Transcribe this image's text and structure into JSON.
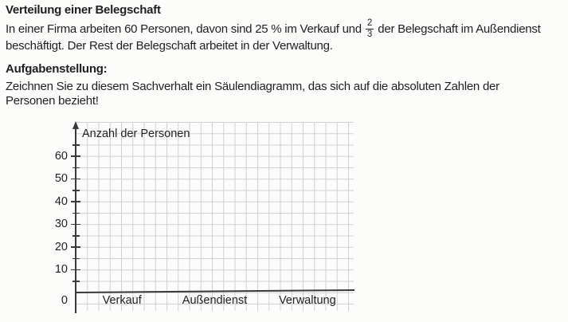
{
  "document": {
    "title": "Verteilung einer Belegschaft",
    "intro": {
      "before_fraction": "In einer Firma arbeiten 60 Personen, davon sind 25 % im Verkauf und",
      "fraction_numerator": "2",
      "fraction_denominator": "3",
      "after_fraction": "der Belegschaft im Außendienst",
      "line2": "beschäftigt. Der Rest der Belegschaft arbeitet in der Verwaltung."
    },
    "task": {
      "heading": "Aufgabenstellung:",
      "line1": "Zeichnen Sie zu diesem Sachverhalt ein Säulendiagramm, das sich auf die absoluten Zahlen der",
      "line2": "Personen bezieht!"
    }
  },
  "chart_data": {
    "type": "bar",
    "title": "",
    "xlabel": "",
    "ylabel": "Anzahl der Personen",
    "categories": [
      "Verkauf",
      "Außendienst",
      "Verwaltung"
    ],
    "values": [],
    "bars_drawn": false,
    "y_axis": {
      "origin_label": "0",
      "labeled_ticks": [
        10,
        20,
        30,
        40,
        50,
        60
      ],
      "minor_step": 5,
      "max_tick": 65,
      "ylim": [
        0,
        65
      ]
    },
    "grid": "on",
    "legend": "none",
    "colors": {
      "grid_line": "#d0d0d3",
      "axis": "#39393b",
      "text": "#1f1f21",
      "background": "#fcfcfb"
    }
  }
}
